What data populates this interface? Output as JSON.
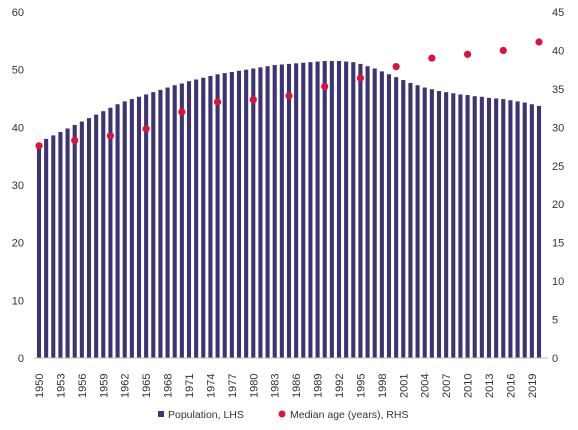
{
  "chart_data": {
    "type": "bar",
    "title": "",
    "xlabel": "",
    "ylabel": "",
    "ylim_left": [
      0,
      60
    ],
    "ylim_right": [
      0,
      45
    ],
    "yticks_left": [
      "0",
      "10",
      "20",
      "30",
      "40",
      "50",
      "60"
    ],
    "yticks_right": [
      "0",
      "5",
      "10",
      "15",
      "20",
      "25",
      "30",
      "35",
      "40",
      "45"
    ],
    "xtick_labels": [
      "1950",
      "1953",
      "1956",
      "1959",
      "1962",
      "1965",
      "1968",
      "1971",
      "1974",
      "1977",
      "1980",
      "1983",
      "1986",
      "1989",
      "1992",
      "1995",
      "1998",
      "2001",
      "2004",
      "2007",
      "2010",
      "2013",
      "2016",
      "2019"
    ],
    "grid": false,
    "legend_position": "bottom",
    "series": [
      {
        "name": "Population, LHS",
        "axis": "left",
        "type": "bar",
        "color": "#3d3473",
        "x": [
          1950,
          1951,
          1952,
          1953,
          1954,
          1955,
          1956,
          1957,
          1958,
          1959,
          1960,
          1961,
          1962,
          1963,
          1964,
          1965,
          1966,
          1967,
          1968,
          1969,
          1970,
          1971,
          1972,
          1973,
          1974,
          1975,
          1976,
          1977,
          1978,
          1979,
          1980,
          1981,
          1982,
          1983,
          1984,
          1985,
          1986,
          1987,
          1988,
          1989,
          1990,
          1991,
          1992,
          1993,
          1994,
          1995,
          1996,
          1997,
          1998,
          1999,
          2000,
          2001,
          2002,
          2003,
          2004,
          2005,
          2006,
          2007,
          2008,
          2009,
          2010,
          2011,
          2012,
          2013,
          2014,
          2015,
          2016,
          2017,
          2018,
          2019,
          2020
        ],
        "values": [
          37.3,
          38.0,
          38.6,
          39.2,
          39.8,
          40.4,
          41.0,
          41.6,
          42.2,
          42.8,
          43.4,
          44.0,
          44.5,
          44.9,
          45.3,
          45.7,
          46.1,
          46.5,
          46.9,
          47.3,
          47.6,
          48.0,
          48.3,
          48.6,
          48.9,
          49.2,
          49.4,
          49.6,
          49.8,
          50.0,
          50.2,
          50.4,
          50.6,
          50.8,
          50.9,
          51.0,
          51.1,
          51.2,
          51.3,
          51.4,
          51.5,
          51.5,
          51.5,
          51.4,
          51.3,
          51.0,
          50.6,
          50.2,
          49.7,
          49.2,
          48.7,
          48.2,
          47.7,
          47.3,
          46.9,
          46.6,
          46.3,
          46.1,
          45.9,
          45.7,
          45.6,
          45.4,
          45.3,
          45.1,
          45.0,
          44.9,
          44.7,
          44.5,
          44.3,
          44.0,
          43.7
        ]
      },
      {
        "name": "Median age (years), RHS",
        "axis": "right",
        "type": "scatter",
        "color": "#e0103c",
        "x": [
          1950,
          1955,
          1960,
          1965,
          1970,
          1975,
          1980,
          1985,
          1990,
          1995,
          2000,
          2005,
          2010,
          2015,
          2020
        ],
        "values": [
          27.6,
          28.3,
          28.9,
          29.8,
          32.0,
          33.3,
          33.6,
          34.1,
          35.3,
          36.4,
          37.9,
          39.0,
          39.5,
          40.0,
          41.1
        ]
      }
    ]
  }
}
